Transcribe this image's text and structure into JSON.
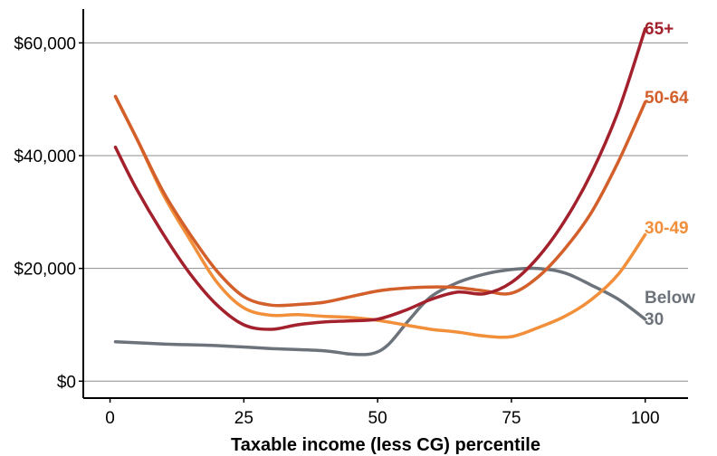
{
  "chart_data": {
    "type": "line",
    "title": "",
    "xlabel": "Taxable income (less CG) percentile",
    "ylabel": "",
    "xlim": [
      -5,
      108
    ],
    "ylim": [
      -3000,
      66000
    ],
    "x_ticks": [
      0,
      25,
      50,
      75,
      100
    ],
    "x_tick_labels": [
      "0",
      "25",
      "50",
      "75",
      "100"
    ],
    "y_ticks": [
      0,
      20000,
      40000,
      60000
    ],
    "y_tick_labels": [
      "$0",
      "$20,000",
      "$40,000",
      "$60,000"
    ],
    "grid": "horizontal",
    "legend": "direct labels at right end of each line",
    "series": [
      {
        "name": "Below 30",
        "label_lines": [
          "Below",
          "30"
        ],
        "color": "#6d737b",
        "points": [
          [
            1,
            7000
          ],
          [
            10,
            6600
          ],
          [
            20,
            6300
          ],
          [
            30,
            5800
          ],
          [
            40,
            5400
          ],
          [
            45,
            4800
          ],
          [
            49,
            4900
          ],
          [
            52,
            6500
          ],
          [
            56,
            11000
          ],
          [
            60,
            15000
          ],
          [
            65,
            17500
          ],
          [
            70,
            19000
          ],
          [
            75,
            19800
          ],
          [
            80,
            20000
          ],
          [
            85,
            19200
          ],
          [
            90,
            17000
          ],
          [
            95,
            14500
          ],
          [
            100,
            11000
          ]
        ]
      },
      {
        "name": "30-49",
        "label_lines": [
          "30-49"
        ],
        "color": "#f28f3b",
        "points": [
          [
            1,
            50500
          ],
          [
            5,
            43000
          ],
          [
            10,
            33000
          ],
          [
            15,
            25000
          ],
          [
            20,
            17500
          ],
          [
            25,
            13000
          ],
          [
            30,
            11700
          ],
          [
            35,
            11800
          ],
          [
            40,
            11500
          ],
          [
            45,
            11300
          ],
          [
            50,
            10800
          ],
          [
            55,
            10000
          ],
          [
            60,
            9200
          ],
          [
            65,
            8700
          ],
          [
            70,
            8000
          ],
          [
            75,
            7900
          ],
          [
            80,
            9500
          ],
          [
            85,
            11500
          ],
          [
            90,
            14500
          ],
          [
            95,
            19000
          ],
          [
            100,
            26000
          ]
        ]
      },
      {
        "name": "50-64",
        "label_lines": [
          "50-64"
        ],
        "color": "#d35f2a",
        "points": [
          [
            1,
            50500
          ],
          [
            5,
            43000
          ],
          [
            10,
            33500
          ],
          [
            15,
            26000
          ],
          [
            20,
            19500
          ],
          [
            25,
            15000
          ],
          [
            30,
            13500
          ],
          [
            35,
            13600
          ],
          [
            40,
            14000
          ],
          [
            45,
            15000
          ],
          [
            50,
            16000
          ],
          [
            55,
            16500
          ],
          [
            60,
            16700
          ],
          [
            65,
            16600
          ],
          [
            70,
            16000
          ],
          [
            75,
            15600
          ],
          [
            80,
            18500
          ],
          [
            85,
            23500
          ],
          [
            90,
            30000
          ],
          [
            95,
            39000
          ],
          [
            100,
            49500
          ]
        ]
      },
      {
        "name": "65+",
        "label_lines": [
          "65+"
        ],
        "color": "#a3212c",
        "points": [
          [
            1,
            41500
          ],
          [
            5,
            34000
          ],
          [
            10,
            26000
          ],
          [
            15,
            19000
          ],
          [
            20,
            13500
          ],
          [
            25,
            10000
          ],
          [
            30,
            9200
          ],
          [
            35,
            10000
          ],
          [
            40,
            10500
          ],
          [
            45,
            10700
          ],
          [
            50,
            11000
          ],
          [
            55,
            12500
          ],
          [
            60,
            14500
          ],
          [
            65,
            15800
          ],
          [
            70,
            15500
          ],
          [
            75,
            17500
          ],
          [
            80,
            22000
          ],
          [
            85,
            28500
          ],
          [
            90,
            37000
          ],
          [
            95,
            48000
          ],
          [
            100,
            62500
          ]
        ]
      }
    ]
  }
}
